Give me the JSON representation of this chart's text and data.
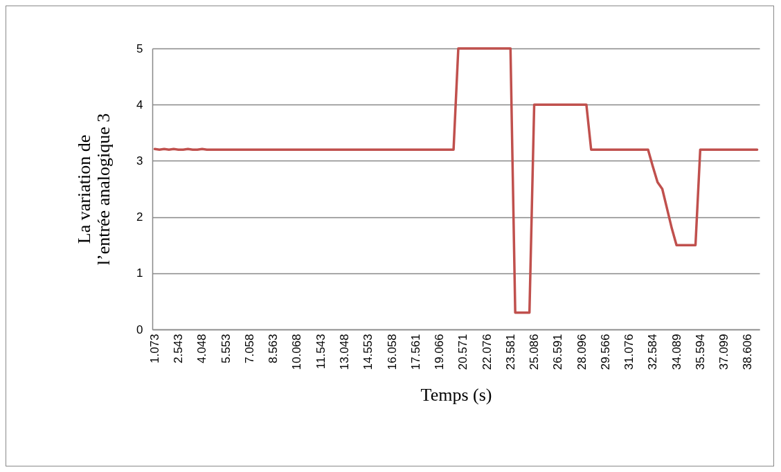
{
  "chart_data": {
    "type": "line",
    "xlabel": "Temps (s)",
    "ylabel": "La variation de l’entrée analogique 3",
    "categories": [
      "1.073",
      null,
      null,
      null,
      null,
      "2.543",
      null,
      null,
      null,
      null,
      "4.048",
      null,
      null,
      null,
      null,
      "5.553",
      null,
      null,
      null,
      null,
      "7.058",
      null,
      null,
      null,
      null,
      "8.563",
      null,
      null,
      null,
      null,
      "10.068",
      null,
      null,
      null,
      null,
      "11.543",
      null,
      null,
      null,
      null,
      "13.048",
      null,
      null,
      null,
      null,
      "14.553",
      null,
      null,
      null,
      null,
      "16.058",
      null,
      null,
      null,
      null,
      "17.561",
      null,
      null,
      null,
      null,
      "19.066",
      null,
      null,
      null,
      null,
      "20.571",
      null,
      null,
      null,
      null,
      "22.076",
      null,
      null,
      null,
      null,
      "23.581",
      null,
      null,
      null,
      null,
      "25.086",
      null,
      null,
      null,
      null,
      "26.591",
      null,
      null,
      null,
      null,
      "28.096",
      null,
      null,
      null,
      null,
      "29.566",
      null,
      null,
      null,
      null,
      "31.076",
      null,
      null,
      null,
      null,
      "32.584",
      null,
      null,
      null,
      null,
      "34.089",
      null,
      null,
      null,
      null,
      "35.594",
      null,
      null,
      null,
      null,
      "37.099",
      null,
      null,
      null,
      null,
      "38.606",
      null,
      null
    ],
    "values": [
      3.21,
      3.2,
      3.21,
      3.2,
      3.21,
      3.2,
      3.2,
      3.21,
      3.2,
      3.2,
      3.21,
      3.2,
      3.2,
      3.2,
      3.2,
      3.2,
      3.2,
      3.2,
      3.2,
      3.2,
      3.2,
      3.2,
      3.2,
      3.2,
      3.2,
      3.2,
      3.2,
      3.2,
      3.2,
      3.2,
      3.2,
      3.2,
      3.2,
      3.2,
      3.2,
      3.2,
      3.2,
      3.2,
      3.2,
      3.2,
      3.2,
      3.2,
      3.2,
      3.2,
      3.2,
      3.2,
      3.2,
      3.2,
      3.2,
      3.2,
      3.2,
      3.2,
      3.2,
      3.2,
      3.2,
      3.2,
      3.2,
      3.2,
      3.2,
      3.2,
      3.2,
      3.2,
      3.2,
      3.2,
      5,
      5,
      5,
      5,
      5,
      5,
      5,
      5,
      5,
      5,
      5,
      5,
      0.3,
      0.3,
      0.3,
      0.3,
      4,
      4,
      4,
      4,
      4,
      4,
      4,
      4,
      4,
      4,
      4,
      4,
      3.2,
      3.2,
      3.2,
      3.2,
      3.2,
      3.2,
      3.2,
      3.2,
      3.2,
      3.2,
      3.2,
      3.2,
      3.2,
      2.9,
      2.62,
      2.5,
      2.15,
      1.8,
      1.5,
      1.5,
      1.5,
      1.5,
      1.5,
      3.2,
      3.2,
      3.2,
      3.2,
      3.2,
      3.2,
      3.2,
      3.2,
      3.2,
      3.2,
      3.2,
      3.2,
      3.2
    ],
    "color": "#c0504d",
    "ylim": [
      0,
      5
    ],
    "yticks": [
      0,
      1,
      2,
      3,
      4,
      5
    ],
    "grid": "y"
  }
}
